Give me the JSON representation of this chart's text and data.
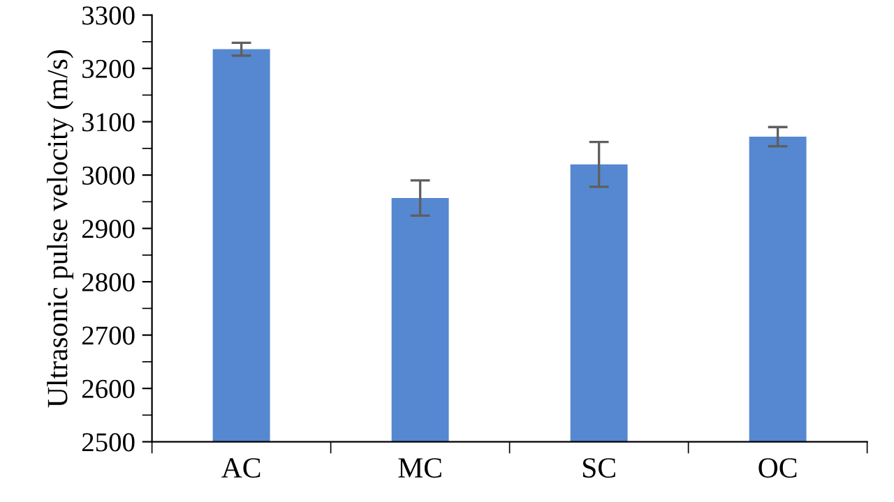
{
  "chart_data": {
    "type": "bar",
    "ylabel": "Ultrasonic pulse velocity (m/s)",
    "categories": [
      "AC",
      "MC",
      "SC",
      "OC"
    ],
    "values": [
      3236,
      2957,
      3020,
      3072
    ],
    "errors": [
      12,
      33,
      42,
      18
    ],
    "color": "#5588d0",
    "ylim": [
      2500,
      3300
    ],
    "yticks": [
      2500,
      2600,
      2700,
      2800,
      2900,
      3000,
      3100,
      3200,
      3300
    ],
    "grid": false,
    "legend": false
  }
}
